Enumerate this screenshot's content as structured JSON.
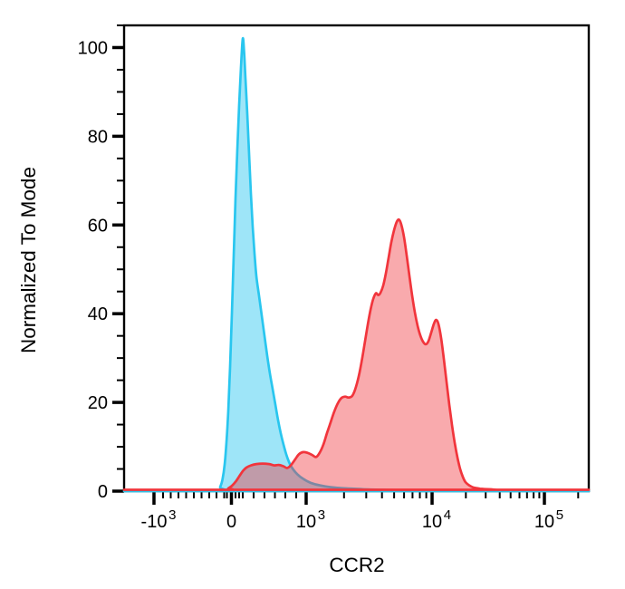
{
  "chart_data": {
    "type": "area",
    "subtype": "flow-cytometry-histogram-overlay",
    "title": "",
    "xlabel": "CCR2",
    "ylabel": "Normalized To Mode",
    "x_scale": "biexponential",
    "grid": false,
    "legend": "none",
    "ylim": [
      0,
      105
    ],
    "y_axis": {
      "major_tick_values": [
        0,
        20,
        40,
        60,
        80,
        100
      ],
      "minor_step": 5
    },
    "x_axis": {
      "major_ticks": [
        {
          "base": "-10",
          "exp": "3",
          "value": -1000,
          "pos": 0.0643
        },
        {
          "base": "0",
          "exp": "",
          "value": 0,
          "pos": 0.231
        },
        {
          "base": "10",
          "exp": "3",
          "value": 1000,
          "pos": 0.3918
        },
        {
          "base": "10",
          "exp": "4",
          "value": 10000,
          "pos": 0.6628
        },
        {
          "base": "10",
          "exp": "5",
          "value": 100000,
          "pos": 0.9045
        }
      ],
      "minor_tick_pos": [
        0.0838,
        0.1004,
        0.117,
        0.1335,
        0.1501,
        0.1667,
        0.1832,
        0.1988,
        0.2154,
        0.2213,
        0.2398,
        0.2476,
        0.2554,
        0.2788,
        0.3021,
        0.3246,
        0.347,
        0.3704,
        0.4733,
        0.5211,
        0.555,
        0.5811,
        0.6025,
        0.6207,
        0.6365,
        0.6503,
        0.7355,
        0.7782,
        0.8084,
        0.8318,
        0.8509,
        0.8671,
        0.8813,
        0.8936,
        0.9772
      ]
    },
    "colors": {
      "frame": "#000000",
      "cyan_stroke": "#29c6ef",
      "red_stroke": "#f1353c"
    },
    "series": [
      {
        "id": "cyan-histogram",
        "name": "cyan histogram",
        "color": "#29c6ef",
        "fill_opacity": 0.45,
        "peak": {
          "pos": 0.2554,
          "height": 102
        },
        "points": [
          [
            0.0,
            0
          ],
          [
            0.2008,
            0
          ],
          [
            0.2066,
            0.9
          ],
          [
            0.2115,
            2.5
          ],
          [
            0.2164,
            6
          ],
          [
            0.2203,
            11
          ],
          [
            0.2242,
            18
          ],
          [
            0.2281,
            28
          ],
          [
            0.232,
            40
          ],
          [
            0.2359,
            53
          ],
          [
            0.2398,
            66
          ],
          [
            0.2437,
            77
          ],
          [
            0.2476,
            87
          ],
          [
            0.2515,
            95.5
          ],
          [
            0.2554,
            102
          ],
          [
            0.2583,
            99
          ],
          [
            0.2612,
            93
          ],
          [
            0.2651,
            85
          ],
          [
            0.269,
            76
          ],
          [
            0.2729,
            67
          ],
          [
            0.2768,
            59.5
          ],
          [
            0.2807,
            53.5
          ],
          [
            0.2846,
            48.5
          ],
          [
            0.2905,
            44
          ],
          [
            0.2963,
            39.5
          ],
          [
            0.3021,
            35
          ],
          [
            0.308,
            30.5
          ],
          [
            0.3138,
            26.5
          ],
          [
            0.3197,
            23
          ],
          [
            0.3255,
            19.5
          ],
          [
            0.3314,
            16
          ],
          [
            0.3372,
            13
          ],
          [
            0.3431,
            10.5
          ],
          [
            0.3489,
            8.3
          ],
          [
            0.3548,
            6.6
          ],
          [
            0.3606,
            5.4
          ],
          [
            0.3684,
            4.3
          ],
          [
            0.3782,
            3.3
          ],
          [
            0.3899,
            2.5
          ],
          [
            0.4035,
            1.8
          ],
          [
            0.4211,
            1.3
          ],
          [
            0.4444,
            0.9
          ],
          [
            0.4737,
            0.65
          ],
          [
            0.5127,
            0.45
          ],
          [
            0.5556,
            0.3
          ],
          [
            0.6004,
            0.18
          ],
          [
            0.6394,
            0.08
          ],
          [
            0.6745,
            0.02
          ],
          [
            0.7018,
            0
          ],
          [
            1.0,
            0
          ]
        ]
      },
      {
        "id": "red-histogram",
        "name": "red histogram",
        "color": "#f1353c",
        "fill_opacity": 0.42,
        "peak": {
          "pos": 0.5916,
          "height": 60.9
        },
        "points": [
          [
            0.0,
            0
          ],
          [
            0.2164,
            0
          ],
          [
            0.2242,
            0.3
          ],
          [
            0.232,
            0.9
          ],
          [
            0.2398,
            1.8
          ],
          [
            0.2476,
            3.0
          ],
          [
            0.2554,
            4.2
          ],
          [
            0.2632,
            5.0
          ],
          [
            0.2729,
            5.5
          ],
          [
            0.2846,
            5.8
          ],
          [
            0.2983,
            5.9
          ],
          [
            0.3119,
            5.8
          ],
          [
            0.3236,
            5.5
          ],
          [
            0.3333,
            5.6
          ],
          [
            0.3431,
            5.3
          ],
          [
            0.3509,
            4.9
          ],
          [
            0.3587,
            5.5
          ],
          [
            0.3684,
            6.9
          ],
          [
            0.3762,
            8.0
          ],
          [
            0.386,
            8.5
          ],
          [
            0.3957,
            8.3
          ],
          [
            0.4055,
            7.8
          ],
          [
            0.4133,
            7.4
          ],
          [
            0.4211,
            8.4
          ],
          [
            0.4289,
            10.2
          ],
          [
            0.4367,
            12.8
          ],
          [
            0.4444,
            15.2
          ],
          [
            0.4522,
            17.6
          ],
          [
            0.46,
            19.5
          ],
          [
            0.4678,
            20.7
          ],
          [
            0.4756,
            21.0
          ],
          [
            0.4834,
            20.8
          ],
          [
            0.4912,
            21.2
          ],
          [
            0.499,
            23.2
          ],
          [
            0.5068,
            26.5
          ],
          [
            0.5146,
            31
          ],
          [
            0.5224,
            36
          ],
          [
            0.5302,
            40.5
          ],
          [
            0.5361,
            43
          ],
          [
            0.5419,
            44.3
          ],
          [
            0.5468,
            43.9
          ],
          [
            0.5517,
            44.4
          ],
          [
            0.5575,
            46
          ],
          [
            0.5634,
            48.8
          ],
          [
            0.5692,
            52.3
          ],
          [
            0.5751,
            55.8
          ],
          [
            0.5809,
            58.5
          ],
          [
            0.5867,
            60.4
          ],
          [
            0.5916,
            60.9
          ],
          [
            0.5965,
            59.8
          ],
          [
            0.6023,
            57
          ],
          [
            0.6082,
            52.8
          ],
          [
            0.614,
            48.2
          ],
          [
            0.6199,
            43.8
          ],
          [
            0.6257,
            40
          ],
          [
            0.6316,
            37
          ],
          [
            0.6374,
            34.8
          ],
          [
            0.6433,
            33.4
          ],
          [
            0.6491,
            32.8
          ],
          [
            0.655,
            33.5
          ],
          [
            0.6608,
            35.4
          ],
          [
            0.6667,
            37.4
          ],
          [
            0.6716,
            38.3
          ],
          [
            0.6764,
            37.4
          ],
          [
            0.6823,
            34.2
          ],
          [
            0.6881,
            29.5
          ],
          [
            0.694,
            24.3
          ],
          [
            0.6998,
            19.2
          ],
          [
            0.7057,
            14.6
          ],
          [
            0.7115,
            10.6
          ],
          [
            0.7174,
            7.3
          ],
          [
            0.7232,
            4.7
          ],
          [
            0.7291,
            2.9
          ],
          [
            0.7349,
            1.7
          ],
          [
            0.7427,
            1.0
          ],
          [
            0.7524,
            0.5
          ],
          [
            0.7661,
            0.25
          ],
          [
            0.7895,
            0.1
          ],
          [
            0.8207,
            0
          ],
          [
            1.0,
            0
          ]
        ]
      }
    ]
  }
}
